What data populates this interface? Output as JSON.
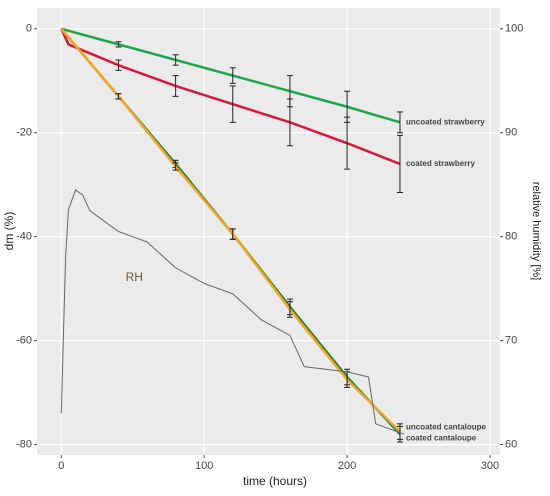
{
  "chart_data": {
    "type": "line",
    "x_label": "time (hours)",
    "y_label": "dm (%)",
    "y2_label": "relative humidity [%]",
    "xlim": [
      -17,
      307
    ],
    "xticks": [
      0,
      100,
      200,
      300
    ],
    "ylim": [
      -82,
      4
    ],
    "yticks": [
      -80,
      -60,
      -40,
      -20,
      0
    ],
    "y2lim": [
      59,
      102
    ],
    "y2ticks": [
      60,
      70,
      80,
      90,
      100
    ],
    "grid": true,
    "series": [
      {
        "name": "uncoated strawberry",
        "color": "#1aa64a",
        "x": [
          0,
          40,
          80,
          120,
          160,
          200,
          237
        ],
        "values": [
          0,
          -3,
          -6,
          -9,
          -12,
          -15,
          -18
        ],
        "errors": [
          null,
          0.5,
          1,
          1.5,
          3,
          3,
          2
        ]
      },
      {
        "name": "coated strawberry",
        "color": "#d6193d",
        "x": [
          0,
          5,
          40,
          80,
          120,
          160,
          200,
          237
        ],
        "values": [
          0,
          -3,
          -7,
          -11,
          -14.5,
          -18,
          -22,
          -26
        ],
        "errors": [
          null,
          null,
          1,
          2,
          3.5,
          4.5,
          5,
          5.5
        ]
      },
      {
        "name": "uncoated cantaloupe",
        "color": "#1f7f45",
        "x": [
          0,
          40,
          80,
          120,
          160,
          200,
          237
        ],
        "values": [
          0,
          -13,
          -26,
          -39.5,
          -53.5,
          -67,
          -78
        ],
        "errors": [
          null,
          0.5,
          0.7,
          1,
          1.5,
          1.5,
          1.5
        ]
      },
      {
        "name": "coated cantaloupe",
        "color": "#f5a623",
        "x": [
          0,
          40,
          80,
          120,
          160,
          200,
          237
        ],
        "values": [
          0,
          -13,
          -26.5,
          -39.5,
          -54,
          -67.5,
          -77.5
        ],
        "errors": [
          null,
          0.5,
          0.7,
          1,
          1.5,
          1.5,
          1.5
        ]
      },
      {
        "name": "RH",
        "color": "#666666",
        "axis": "y2",
        "x": [
          0,
          3,
          5,
          10,
          15,
          20,
          40,
          60,
          80,
          100,
          120,
          140,
          160,
          170,
          200,
          215,
          220,
          240
        ],
        "values": [
          63,
          78,
          82.6,
          84.5,
          84,
          82.5,
          80.5,
          79.5,
          77,
          75.5,
          74.5,
          72,
          70.5,
          67.5,
          67,
          66.5,
          62,
          61
        ]
      }
    ]
  }
}
